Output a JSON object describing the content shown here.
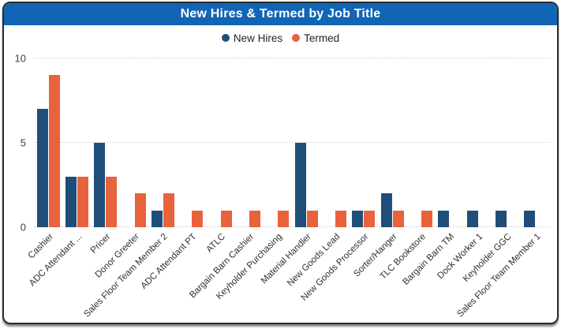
{
  "header": {
    "title": "New Hires & Termed by Job Title"
  },
  "colors": {
    "header_bg": "#1165B4",
    "card_border": "#2b2b2b",
    "new_hires": "#1F4E79",
    "termed": "#E8623C",
    "gridline": "#d2d2d2",
    "axis_text": "#3f3f3f",
    "label_text": "#303030"
  },
  "legend": {
    "items": [
      {
        "label": "New Hires",
        "color": "#1F4E79"
      },
      {
        "label": "Termed",
        "color": "#E8623C"
      }
    ]
  },
  "chart_data": {
    "type": "bar",
    "title": "New Hires & Termed by Job Title",
    "xlabel": "",
    "ylabel": "",
    "ylim": [
      0,
      10
    ],
    "yticks": [
      0,
      5,
      10
    ],
    "grid": "horizontal-dotted",
    "legend_position": "top",
    "categories": [
      "Cashier",
      "ADC Attendant ...",
      "Pricer",
      "Donor Greeter",
      "Sales Floor Team Member 2",
      "ADC Attendant PT",
      "ATLC",
      "Bargain Barn Cashier",
      "Keyholder Purchasing",
      "Material Handler",
      "New Goods Lead",
      "New Goods Processor",
      "Sorter/Hanger",
      "TLC Bookstore",
      "Bargain Barn TM",
      "Dock Worker 1",
      "Keyholder GGC",
      "Sales Floor Team Member 1"
    ],
    "series": [
      {
        "name": "New Hires",
        "color": "#1F4E79",
        "values": [
          7,
          3,
          5,
          0,
          1,
          0,
          0,
          0,
          0,
          5,
          0,
          1,
          2,
          0,
          1,
          1,
          1,
          1
        ]
      },
      {
        "name": "Termed",
        "color": "#E8623C",
        "values": [
          9,
          3,
          3,
          2,
          2,
          1,
          1,
          1,
          1,
          1,
          1,
          1,
          1,
          1,
          0,
          0,
          0,
          0
        ]
      }
    ]
  }
}
